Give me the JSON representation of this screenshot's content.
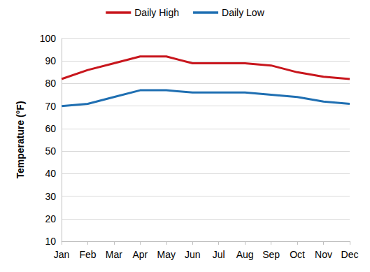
{
  "chart_data": {
    "type": "line",
    "y_label": "Temperature (°F)",
    "categories": [
      "Jan",
      "Feb",
      "Mar",
      "Apr",
      "May",
      "Jun",
      "Jul",
      "Aug",
      "Sep",
      "Oct",
      "Nov",
      "Dec"
    ],
    "series": [
      {
        "name": "Daily High",
        "color": "#c8161d",
        "values": [
          82,
          86,
          89,
          92,
          92,
          89,
          89,
          89,
          88,
          85,
          83,
          82
        ]
      },
      {
        "name": "Daily Low",
        "color": "#1f6fb2",
        "values": [
          70,
          71,
          74,
          77,
          77,
          76,
          76,
          76,
          75,
          74,
          72,
          71
        ]
      }
    ],
    "ylim": [
      10,
      100
    ],
    "yticks": [
      10,
      20,
      30,
      40,
      50,
      60,
      70,
      80,
      90,
      100
    ],
    "grid": true,
    "legend": "top"
  }
}
